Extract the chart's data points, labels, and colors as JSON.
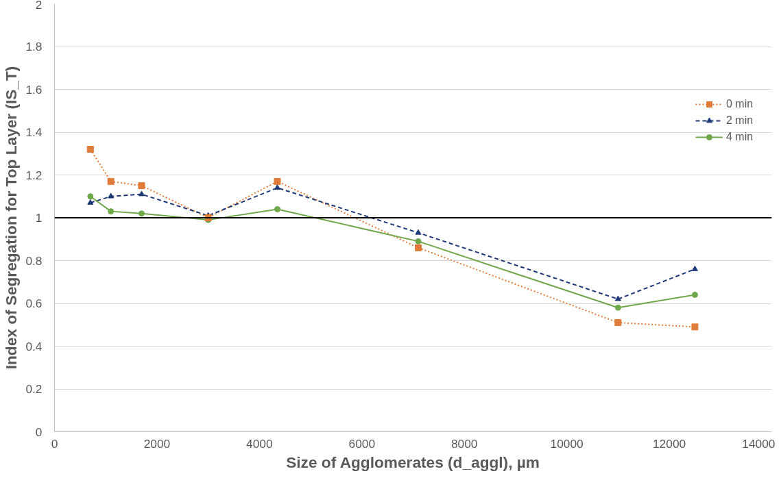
{
  "chart_data": {
    "type": "line",
    "xlabel": "Size of Agglomerates (d_aggl), µm",
    "ylabel": "Index of Segregation for Top Layer (IS_T)",
    "x": [
      700,
      1100,
      1700,
      3000,
      4350,
      7100,
      11000,
      12500
    ],
    "series": [
      {
        "name": "0 min",
        "color": "#e07b39",
        "marker": "square",
        "line_style": "dotted",
        "values": [
          1.32,
          1.17,
          1.15,
          1.0,
          1.17,
          0.86,
          0.51,
          0.49
        ]
      },
      {
        "name": "2 min",
        "color": "#1f3a78",
        "marker": "triangle",
        "line_style": "dashed",
        "values": [
          1.07,
          1.1,
          1.11,
          1.01,
          1.14,
          0.93,
          0.62,
          0.76
        ]
      },
      {
        "name": "4 min",
        "color": "#6fa84a",
        "marker": "circle",
        "line_style": "solid",
        "values": [
          1.1,
          1.03,
          1.02,
          0.99,
          1.04,
          0.89,
          0.58,
          0.64
        ]
      }
    ],
    "xlim": [
      0,
      14000
    ],
    "xticks": [
      0,
      2000,
      4000,
      6000,
      8000,
      10000,
      12000,
      14000
    ],
    "ylim": [
      0,
      2
    ],
    "yticks": [
      0,
      0.2,
      0.4,
      0.6,
      0.8,
      1,
      1.2,
      1.4,
      1.6,
      1.8,
      2
    ],
    "ref_lines": [
      {
        "axis": "y",
        "value": 1,
        "color": "#000000"
      }
    ],
    "grid": "y",
    "legend": "right"
  }
}
